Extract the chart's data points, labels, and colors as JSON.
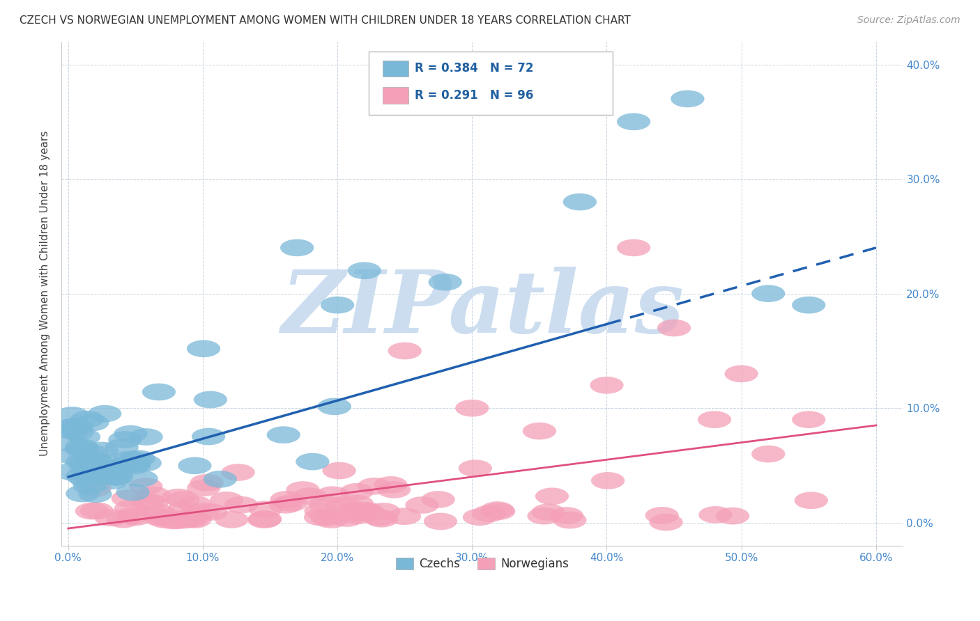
{
  "title": "CZECH VS NORWEGIAN UNEMPLOYMENT AMONG WOMEN WITH CHILDREN UNDER 18 YEARS CORRELATION CHART",
  "source": "Source: ZipAtlas.com",
  "ylabel": "Unemployment Among Women with Children Under 18 years",
  "ylim": [
    -0.02,
    0.42
  ],
  "xlim": [
    -0.005,
    0.62
  ],
  "x_ticks": [
    0.0,
    0.1,
    0.2,
    0.3,
    0.4,
    0.5,
    0.6
  ],
  "x_tick_labels": [
    "0.0%",
    "10.0%",
    "20.0%",
    "30.0%",
    "40.0%",
    "50.0%",
    "60.0%"
  ],
  "y_ticks": [
    0.0,
    0.1,
    0.2,
    0.3,
    0.4
  ],
  "y_tick_labels": [
    "0.0%",
    "10.0%",
    "20.0%",
    "30.0%",
    "40.0%"
  ],
  "czech_color": "#7ab8d8",
  "norwegian_color": "#f4a0b8",
  "czech_R": 0.384,
  "czech_N": 72,
  "norwegian_R": 0.291,
  "norwegian_N": 96,
  "legend_color": "#2060a0",
  "legend_N_color": "#cc0000",
  "watermark": "ZIPatlas",
  "watermark_color": "#ccddf0",
  "background_color": "#ffffff",
  "grid_color": "#c8d4e0",
  "czech_line_color": "#2060b0",
  "norwegian_line_color": "#e05080",
  "czech_line_start_x": 0.0,
  "czech_line_end_x": 0.6,
  "czech_line_solid_end_x": 0.4,
  "czech_line_start_y": 0.04,
  "czech_line_end_y": 0.24,
  "norwegian_line_start_x": 0.0,
  "norwegian_line_end_x": 0.6,
  "norwegian_line_start_y": -0.005,
  "norwegian_line_end_y": 0.085
}
